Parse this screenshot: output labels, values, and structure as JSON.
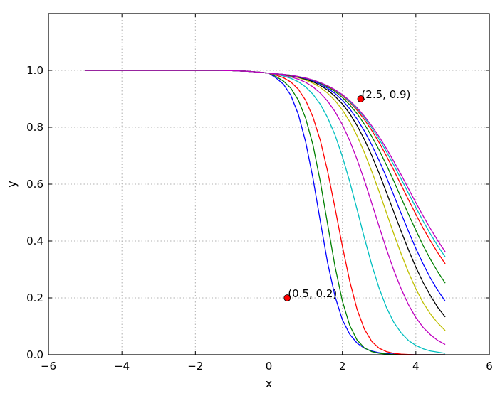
{
  "chart_data": {
    "type": "line",
    "title": "",
    "xlabel": "x",
    "ylabel": "y",
    "xlim": [
      -6,
      6
    ],
    "ylim": [
      0,
      1.2
    ],
    "xticks": [
      -6,
      -4,
      -2,
      0,
      2,
      4,
      6
    ],
    "xtick_labels": [
      "−6",
      "−4",
      "−2",
      "0",
      "2",
      "4",
      "6"
    ],
    "yticks": [
      0.0,
      0.2,
      0.4,
      0.6,
      0.8,
      1.0
    ],
    "ytick_labels": [
      "0.0",
      "0.2",
      "0.4",
      "0.6",
      "0.8",
      "1.0"
    ],
    "grid": true,
    "x": [
      -5.0,
      -4.8,
      -4.6,
      -4.4,
      -4.2,
      -4.0,
      -3.8,
      -3.6,
      -3.4,
      -3.2,
      -3.0,
      -2.8,
      -2.6,
      -2.4,
      -2.2,
      -2.0,
      -1.8,
      -1.6,
      -1.4,
      -1.2,
      -1.0,
      -0.8,
      -0.6,
      -0.4,
      -0.2,
      0.0,
      0.2,
      0.4,
      0.6,
      0.8,
      1.0,
      1.2,
      1.4,
      1.6,
      1.8,
      2.0,
      2.2,
      2.4,
      2.6,
      2.8,
      3.0,
      3.2,
      3.4,
      3.6,
      3.8,
      4.0,
      4.2,
      4.4,
      4.6,
      4.8
    ],
    "series": [
      {
        "color": "#0000ff",
        "values": [
          1.0,
          1.0,
          1.0,
          1.0,
          1.0,
          1.0,
          1.0,
          1.0,
          1.0,
          1.0,
          1.0,
          1.0,
          1.0,
          1.0,
          1.0,
          1.0,
          1.0,
          1.0,
          1.0,
          0.999,
          0.999,
          0.998,
          0.997,
          0.995,
          0.993,
          0.99,
          0.973,
          0.951,
          0.912,
          0.846,
          0.749,
          0.621,
          0.47,
          0.323,
          0.205,
          0.123,
          0.072,
          0.041,
          0.023,
          0.013,
          0.007,
          0.004,
          0.002,
          0.001,
          0.001,
          0.0,
          0.0,
          0.0,
          0.0,
          0.0
        ]
      },
      {
        "color": "#008000",
        "values": [
          1.0,
          1.0,
          1.0,
          1.0,
          1.0,
          1.0,
          1.0,
          1.0,
          1.0,
          1.0,
          1.0,
          1.0,
          1.0,
          1.0,
          1.0,
          1.0,
          1.0,
          1.0,
          1.0,
          0.999,
          0.999,
          0.998,
          0.997,
          0.995,
          0.993,
          0.99,
          0.978,
          0.962,
          0.937,
          0.896,
          0.832,
          0.738,
          0.609,
          0.459,
          0.31,
          0.189,
          0.103,
          0.052,
          0.024,
          0.011,
          0.005,
          0.002,
          0.001,
          0.0,
          0.0,
          0.0,
          0.0,
          0.0,
          0.0,
          0.0
        ]
      },
      {
        "color": "#ff0000",
        "values": [
          1.0,
          1.0,
          1.0,
          1.0,
          1.0,
          1.0,
          1.0,
          1.0,
          1.0,
          1.0,
          1.0,
          1.0,
          1.0,
          1.0,
          1.0,
          1.0,
          1.0,
          1.0,
          1.0,
          0.999,
          0.999,
          0.998,
          0.997,
          0.995,
          0.993,
          0.99,
          0.983,
          0.974,
          0.959,
          0.934,
          0.895,
          0.836,
          0.754,
          0.645,
          0.516,
          0.382,
          0.259,
          0.16,
          0.09,
          0.047,
          0.023,
          0.011,
          0.005,
          0.002,
          0.001,
          0.0,
          0.0,
          0.0,
          0.0,
          0.0
        ]
      },
      {
        "color": "#00bfbf",
        "values": [
          1.0,
          1.0,
          1.0,
          1.0,
          1.0,
          1.0,
          1.0,
          1.0,
          1.0,
          1.0,
          1.0,
          1.0,
          1.0,
          1.0,
          1.0,
          1.0,
          1.0,
          1.0,
          1.0,
          0.999,
          0.999,
          0.998,
          0.997,
          0.995,
          0.993,
          0.99,
          0.986,
          0.98,
          0.972,
          0.96,
          0.942,
          0.916,
          0.881,
          0.834,
          0.773,
          0.697,
          0.609,
          0.511,
          0.411,
          0.317,
          0.234,
          0.166,
          0.114,
          0.077,
          0.05,
          0.033,
          0.021,
          0.013,
          0.009,
          0.005
        ]
      },
      {
        "color": "#bf00bf",
        "values": [
          1.0,
          1.0,
          1.0,
          1.0,
          1.0,
          1.0,
          1.0,
          1.0,
          1.0,
          1.0,
          1.0,
          1.0,
          1.0,
          1.0,
          1.0,
          1.0,
          1.0,
          1.0,
          1.0,
          0.999,
          0.999,
          0.998,
          0.997,
          0.995,
          0.993,
          0.99,
          0.987,
          0.983,
          0.977,
          0.969,
          0.958,
          0.942,
          0.92,
          0.892,
          0.855,
          0.809,
          0.753,
          0.687,
          0.613,
          0.533,
          0.451,
          0.371,
          0.297,
          0.232,
          0.176,
          0.131,
          0.096,
          0.07,
          0.05,
          0.036
        ]
      },
      {
        "color": "#bfbf00",
        "values": [
          1.0,
          1.0,
          1.0,
          1.0,
          1.0,
          1.0,
          1.0,
          1.0,
          1.0,
          1.0,
          1.0,
          1.0,
          1.0,
          1.0,
          1.0,
          1.0,
          1.0,
          1.0,
          1.0,
          0.999,
          0.999,
          0.998,
          0.997,
          0.995,
          0.993,
          0.99,
          0.988,
          0.985,
          0.98,
          0.974,
          0.966,
          0.955,
          0.94,
          0.92,
          0.894,
          0.861,
          0.82,
          0.77,
          0.711,
          0.645,
          0.574,
          0.499,
          0.425,
          0.355,
          0.29,
          0.232,
          0.183,
          0.143,
          0.111,
          0.085
        ]
      },
      {
        "color": "#000000",
        "values": [
          1.0,
          1.0,
          1.0,
          1.0,
          1.0,
          1.0,
          1.0,
          1.0,
          1.0,
          1.0,
          1.0,
          1.0,
          1.0,
          1.0,
          1.0,
          1.0,
          1.0,
          1.0,
          1.0,
          0.999,
          0.999,
          0.998,
          0.997,
          0.995,
          0.993,
          0.99,
          0.988,
          0.985,
          0.981,
          0.976,
          0.969,
          0.96,
          0.947,
          0.931,
          0.909,
          0.882,
          0.848,
          0.806,
          0.757,
          0.701,
          0.638,
          0.571,
          0.502,
          0.434,
          0.369,
          0.308,
          0.254,
          0.207,
          0.166,
          0.133
        ]
      },
      {
        "color": "#0000ff",
        "values": [
          1.0,
          1.0,
          1.0,
          1.0,
          1.0,
          1.0,
          1.0,
          1.0,
          1.0,
          1.0,
          1.0,
          1.0,
          1.0,
          1.0,
          1.0,
          1.0,
          1.0,
          1.0,
          1.0,
          0.999,
          0.999,
          0.998,
          0.997,
          0.995,
          0.993,
          0.99,
          0.988,
          0.986,
          0.982,
          0.977,
          0.971,
          0.963,
          0.952,
          0.937,
          0.919,
          0.895,
          0.865,
          0.829,
          0.787,
          0.738,
          0.683,
          0.624,
          0.561,
          0.497,
          0.434,
          0.374,
          0.319,
          0.269,
          0.226,
          0.188
        ]
      },
      {
        "color": "#008000",
        "values": [
          1.0,
          1.0,
          1.0,
          1.0,
          1.0,
          1.0,
          1.0,
          1.0,
          1.0,
          1.0,
          1.0,
          1.0,
          1.0,
          1.0,
          1.0,
          1.0,
          1.0,
          1.0,
          1.0,
          0.999,
          0.999,
          0.998,
          0.997,
          0.995,
          0.993,
          0.99,
          0.988,
          0.986,
          0.982,
          0.978,
          0.972,
          0.965,
          0.955,
          0.942,
          0.926,
          0.905,
          0.879,
          0.848,
          0.811,
          0.768,
          0.72,
          0.667,
          0.611,
          0.552,
          0.494,
          0.438,
          0.384,
          0.335,
          0.291,
          0.252
        ]
      },
      {
        "color": "#ff0000",
        "values": [
          1.0,
          1.0,
          1.0,
          1.0,
          1.0,
          1.0,
          1.0,
          1.0,
          1.0,
          1.0,
          1.0,
          1.0,
          1.0,
          1.0,
          1.0,
          1.0,
          1.0,
          1.0,
          1.0,
          0.999,
          0.999,
          0.998,
          0.997,
          0.995,
          0.993,
          0.99,
          0.988,
          0.986,
          0.983,
          0.978,
          0.973,
          0.966,
          0.957,
          0.945,
          0.93,
          0.911,
          0.888,
          0.86,
          0.827,
          0.789,
          0.746,
          0.699,
          0.649,
          0.597,
          0.545,
          0.494,
          0.445,
          0.4,
          0.358,
          0.32
        ]
      },
      {
        "color": "#00bfbf",
        "values": [
          1.0,
          1.0,
          1.0,
          1.0,
          1.0,
          1.0,
          1.0,
          1.0,
          1.0,
          1.0,
          1.0,
          1.0,
          1.0,
          1.0,
          1.0,
          1.0,
          1.0,
          1.0,
          1.0,
          0.999,
          0.999,
          0.998,
          0.997,
          0.995,
          0.993,
          0.99,
          0.988,
          0.986,
          0.983,
          0.978,
          0.973,
          0.966,
          0.957,
          0.946,
          0.931,
          0.913,
          0.891,
          0.865,
          0.834,
          0.798,
          0.758,
          0.714,
          0.667,
          0.618,
          0.568,
          0.518,
          0.47,
          0.424,
          0.382,
          0.344
        ]
      },
      {
        "color": "#bf00bf",
        "values": [
          1.0,
          1.0,
          1.0,
          1.0,
          1.0,
          1.0,
          1.0,
          1.0,
          1.0,
          1.0,
          1.0,
          1.0,
          1.0,
          1.0,
          1.0,
          1.0,
          1.0,
          1.0,
          1.0,
          0.999,
          0.999,
          0.998,
          0.997,
          0.995,
          0.993,
          0.99,
          0.988,
          0.986,
          0.983,
          0.978,
          0.973,
          0.966,
          0.957,
          0.946,
          0.932,
          0.915,
          0.894,
          0.869,
          0.839,
          0.805,
          0.767,
          0.725,
          0.68,
          0.633,
          0.584,
          0.535,
          0.488,
          0.443,
          0.401,
          0.362
        ]
      }
    ],
    "points": [
      {
        "x": 2.5,
        "y": 0.9,
        "label": "(2.5, 0.9)",
        "color": "#ff0000"
      },
      {
        "x": 0.5,
        "y": 0.2,
        "label": "(0.5, 0.2)",
        "color": "#ff0000"
      }
    ]
  }
}
